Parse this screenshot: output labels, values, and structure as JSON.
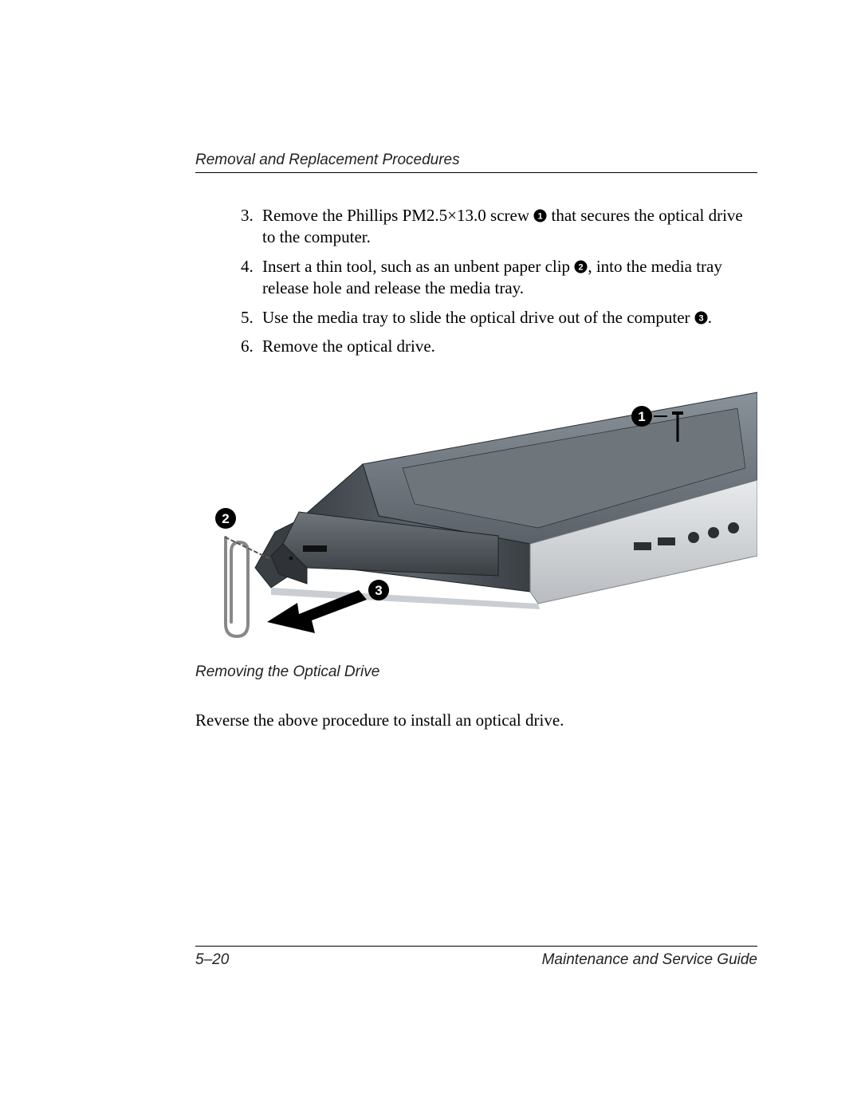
{
  "header": {
    "section_title": "Removal and Replacement Procedures"
  },
  "steps": {
    "start": 3,
    "items": [
      {
        "pre": "Remove the Phillips PM2.5×13.0 screw ",
        "bullet": "1",
        "post": " that secures the optical drive to the computer."
      },
      {
        "pre": "Insert a thin tool, such as an unbent paper clip ",
        "bullet": "2",
        "post": ", into the media tray release hole and release the media tray."
      },
      {
        "pre": "Use the media tray to slide the optical drive out of the computer ",
        "bullet": "3",
        "post": "."
      },
      {
        "pre": "Remove the optical drive.",
        "bullet": null,
        "post": ""
      }
    ]
  },
  "figure": {
    "caption": "Removing the Optical Drive",
    "callouts": {
      "c1": "1",
      "c2": "2",
      "c3": "3"
    },
    "colors": {
      "chassis_dark": "#3a3f44",
      "chassis_mid": "#5a6168",
      "chassis_light": "#8a9299",
      "chassis_edge": "#c9ced2",
      "top_panel": "#6e757b",
      "arrow": "#000000",
      "clip": "#888888",
      "callout_fill": "#000000",
      "callout_text": "#ffffff"
    }
  },
  "paragraph": {
    "text": "Reverse the above procedure to install an optical drive."
  },
  "footer": {
    "page_number": "5–20",
    "manual_title": "Maintenance and Service Guide"
  }
}
